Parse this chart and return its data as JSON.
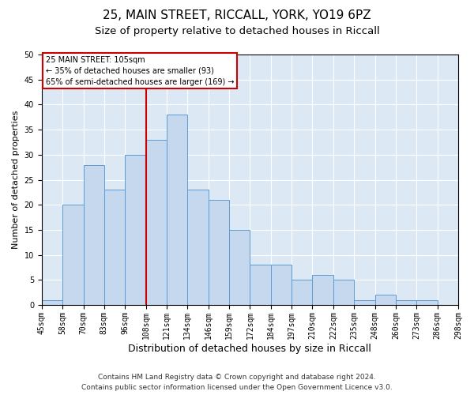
{
  "title1": "25, MAIN STREET, RICCALL, YORK, YO19 6PZ",
  "title2": "Size of property relative to detached houses in Riccall",
  "xlabel": "Distribution of detached houses by size in Riccall",
  "ylabel": "Number of detached properties",
  "footer1": "Contains HM Land Registry data © Crown copyright and database right 2024.",
  "footer2": "Contains public sector information licensed under the Open Government Licence v3.0.",
  "annotation_line1": "25 MAIN STREET: 105sqm",
  "annotation_line2": "← 35% of detached houses are smaller (93)",
  "annotation_line3": "65% of semi-detached houses are larger (169) →",
  "bar_values": [
    1,
    20,
    28,
    23,
    30,
    33,
    38,
    23,
    21,
    15,
    8,
    8,
    5,
    6,
    5,
    1,
    2,
    1,
    1,
    0
  ],
  "bar_labels": [
    "45sqm",
    "58sqm",
    "70sqm",
    "83sqm",
    "96sqm",
    "108sqm",
    "121sqm",
    "134sqm",
    "146sqm",
    "159sqm",
    "172sqm",
    "184sqm",
    "197sqm",
    "210sqm",
    "222sqm",
    "235sqm",
    "248sqm",
    "260sqm",
    "273sqm",
    "286sqm",
    "298sqm"
  ],
  "bar_color": "#c5d8ed",
  "bar_edge_color": "#5b9bd5",
  "vline_color": "#cc0000",
  "ylim": [
    0,
    50
  ],
  "yticks": [
    0,
    5,
    10,
    15,
    20,
    25,
    30,
    35,
    40,
    45,
    50
  ],
  "plot_bg_color": "#dce9f5",
  "annotation_box_color": "#cc0000",
  "title1_fontsize": 11,
  "title2_fontsize": 9.5,
  "xlabel_fontsize": 9,
  "ylabel_fontsize": 8,
  "footer_fontsize": 6.5,
  "tick_fontsize": 7
}
